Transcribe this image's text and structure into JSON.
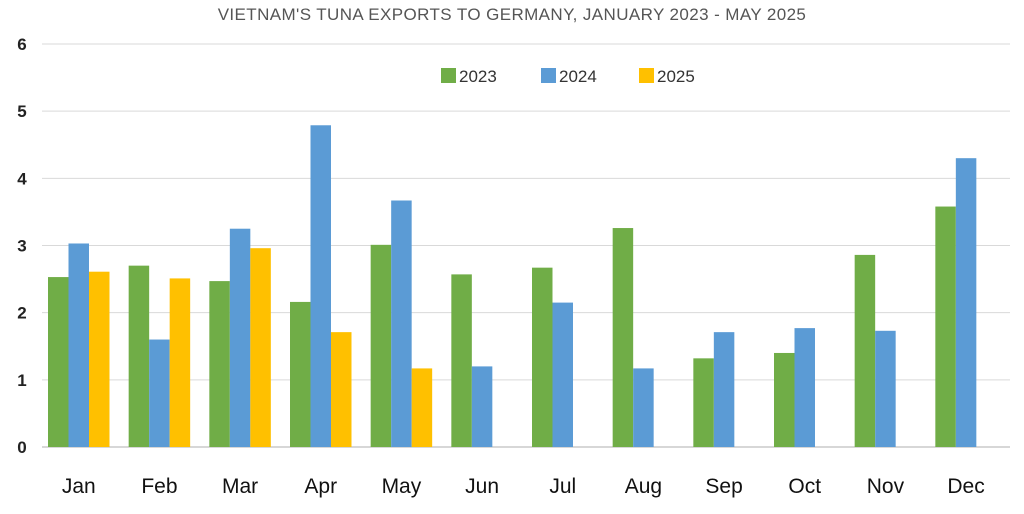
{
  "chart_data": {
    "type": "bar",
    "title": "VIETNAM'S TUNA EXPORTS TO GERMANY, JANUARY 2023 - MAY 2025",
    "xlabel": "",
    "ylabel": "",
    "ylim": [
      0,
      6
    ],
    "yticks": [
      "0",
      "1",
      "2",
      "3",
      "4",
      "5",
      "6"
    ],
    "grid": true,
    "legend_position": "top-center",
    "categories": [
      "Jan",
      "Feb",
      "Mar",
      "Apr",
      "May",
      "Jun",
      "Jul",
      "Aug",
      "Sep",
      "Oct",
      "Nov",
      "Dec"
    ],
    "series": [
      {
        "name": "2023",
        "color": "#70ad47",
        "values": [
          2.53,
          2.7,
          2.47,
          2.16,
          3.01,
          2.57,
          2.67,
          3.26,
          1.32,
          1.4,
          2.86,
          3.58
        ]
      },
      {
        "name": "2024",
        "color": "#5b9bd5",
        "values": [
          3.03,
          1.6,
          3.25,
          4.79,
          3.67,
          1.2,
          2.15,
          1.17,
          1.71,
          1.77,
          1.73,
          4.3
        ]
      },
      {
        "name": "2025",
        "color": "#ffc000",
        "values": [
          2.61,
          2.51,
          2.96,
          1.71,
          1.17,
          null,
          null,
          null,
          null,
          null,
          null,
          null
        ]
      }
    ]
  }
}
